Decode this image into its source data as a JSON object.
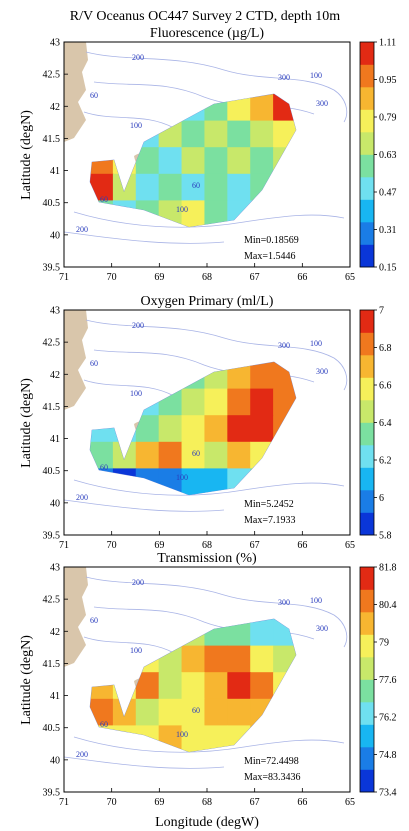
{
  "figure": {
    "title_line1": "R/V Oceanus OC447 Survey 2 CTD, depth 10m",
    "xlabel": "Longitude (degW)",
    "ylabel": "Latitude (degN)"
  },
  "colors": {
    "land": "#d9c6ab",
    "contour": "#a9b4e6",
    "contour_label": "#2a3dbd",
    "colorbar_ramp": [
      "#0a36d8",
      "#1a7de6",
      "#18b6f2",
      "#6fe0f0",
      "#7be0a0",
      "#c8e86a",
      "#f6f05a",
      "#f7b631",
      "#f0781e",
      "#e22a14"
    ]
  },
  "chart_data": [
    {
      "type": "heatmap",
      "title": "Fluorescence (µg/L)",
      "xlim": [
        71,
        65
      ],
      "ylim": [
        39.5,
        43
      ],
      "x_ticks": [
        "71",
        "70",
        "69",
        "68",
        "67",
        "66",
        "65"
      ],
      "y_ticks": [
        "43",
        "42.5",
        "42",
        "41.5",
        "41",
        "40.5",
        "40",
        "39.5"
      ],
      "colorbar_ticks": [
        "1.11",
        "0.95",
        "0.79",
        "0.63",
        "0.47",
        "0.31",
        "0.15"
      ],
      "colorbar_range": [
        0.15,
        1.11
      ],
      "min_label": "Min=0.18569",
      "max_label": "Max=1.5446",
      "pattern": [
        [
          0.35,
          0.45,
          0.55,
          0.4,
          0.3,
          0.45,
          0.65,
          0.8,
          0.95
        ],
        [
          0.5,
          0.4,
          0.35,
          0.5,
          0.4,
          0.55,
          0.45,
          0.6,
          0.7
        ],
        [
          0.85,
          0.7,
          0.4,
          0.3,
          0.55,
          0.4,
          0.5,
          0.45,
          0.55
        ],
        [
          0.95,
          0.6,
          0.35,
          0.45,
          0.3,
          0.45,
          0.35,
          0.4,
          0.5
        ],
        [
          0.45,
          0.35,
          0.4,
          0.55,
          0.7,
          0.45,
          0.35,
          0.3,
          0.4
        ]
      ]
    },
    {
      "type": "heatmap",
      "title": "Oxygen Primary (ml/L)",
      "xlim": [
        71,
        65
      ],
      "ylim": [
        39.5,
        43
      ],
      "x_ticks": [
        "71",
        "70",
        "69",
        "68",
        "67",
        "66",
        "65"
      ],
      "y_ticks": [
        "43",
        "42.5",
        "42",
        "41.5",
        "41",
        "40.5",
        "40",
        "39.5"
      ],
      "colorbar_ticks": [
        "7",
        "6.8",
        "6.6",
        "6.4",
        "6.2",
        "6",
        "5.8"
      ],
      "colorbar_range": [
        5.8,
        7.0
      ],
      "min_label": "Min=5.2452",
      "max_label": "Max=7.1933",
      "pattern": [
        [
          0.2,
          0.2,
          0.25,
          0.3,
          0.45,
          0.6,
          0.75,
          0.85,
          0.9
        ],
        [
          0.25,
          0.3,
          0.3,
          0.4,
          0.55,
          0.65,
          0.85,
          0.95,
          0.9
        ],
        [
          0.35,
          0.3,
          0.45,
          0.55,
          0.65,
          0.8,
          0.95,
          0.95,
          0.85
        ],
        [
          0.4,
          0.55,
          0.75,
          0.85,
          0.7,
          0.6,
          0.8,
          0.7,
          0.55
        ],
        [
          0.1,
          0.05,
          0.1,
          0.15,
          0.2,
          0.25,
          0.35,
          0.4,
          0.45
        ]
      ]
    },
    {
      "type": "heatmap",
      "title": "Transmission (%)",
      "xlim": [
        71,
        65
      ],
      "ylim": [
        39.5,
        43
      ],
      "x_ticks": [
        "71",
        "70",
        "69",
        "68",
        "67",
        "66",
        "65"
      ],
      "y_ticks": [
        "43",
        "42.5",
        "42",
        "41.5",
        "41",
        "40.5",
        "40",
        "39.5"
      ],
      "colorbar_ticks": [
        "81.8",
        "80.4",
        "79",
        "77.6",
        "76.2",
        "74.8",
        "73.4"
      ],
      "colorbar_range": [
        73.4,
        81.8
      ],
      "min_label": "Min=72.4498",
      "max_label": "Max=83.3436",
      "pattern": [
        [
          0.7,
          0.75,
          0.8,
          0.65,
          0.55,
          0.45,
          0.4,
          0.3,
          0.35
        ],
        [
          0.8,
          0.85,
          0.7,
          0.6,
          0.75,
          0.85,
          0.9,
          0.7,
          0.5
        ],
        [
          0.75,
          0.65,
          0.85,
          0.55,
          0.7,
          0.8,
          0.95,
          0.85,
          0.65
        ],
        [
          0.85,
          0.75,
          0.6,
          0.7,
          0.65,
          0.75,
          0.8,
          0.75,
          0.7
        ],
        [
          0.7,
          0.65,
          0.7,
          0.75,
          0.7,
          0.65,
          0.7,
          0.75,
          0.7
        ]
      ]
    }
  ]
}
